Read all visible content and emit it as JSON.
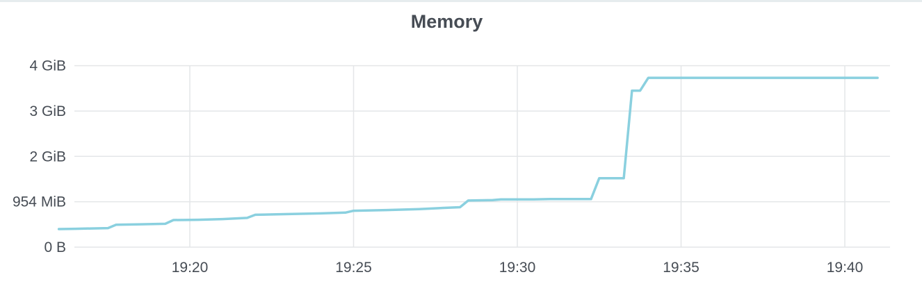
{
  "panel": {
    "title": "Memory"
  },
  "chart_data": {
    "type": "line",
    "title": "Memory",
    "xlabel": "",
    "ylabel": "",
    "x_range": [
      "19:16",
      "19:41"
    ],
    "ylim_mib": [
      0,
      4300
    ],
    "y_ticks": [
      {
        "label": "0 B",
        "value_mib": 0
      },
      {
        "label": "954 MiB",
        "value_mib": 954
      },
      {
        "label": "2 GiB",
        "value_mib": 1908
      },
      {
        "label": "3 GiB",
        "value_mib": 2861
      },
      {
        "label": "4 GiB",
        "value_mib": 3815
      }
    ],
    "x_ticks": [
      "19:20",
      "19:25",
      "19:30",
      "19:35",
      "19:40"
    ],
    "grid": true,
    "line_color": "#8ad0df",
    "series": [
      {
        "unit": "MiB",
        "points": [
          [
            "19:16:00",
            380
          ],
          [
            "19:16:30",
            385
          ],
          [
            "19:17:00",
            392
          ],
          [
            "19:17:30",
            400
          ],
          [
            "19:17:45",
            470
          ],
          [
            "19:18:30",
            480
          ],
          [
            "19:19:15",
            490
          ],
          [
            "19:19:30",
            570
          ],
          [
            "19:20:15",
            575
          ],
          [
            "19:21:00",
            590
          ],
          [
            "19:21:45",
            615
          ],
          [
            "19:22:00",
            680
          ],
          [
            "19:23:00",
            695
          ],
          [
            "19:24:00",
            710
          ],
          [
            "19:24:45",
            725
          ],
          [
            "19:25:00",
            765
          ],
          [
            "19:26:00",
            780
          ],
          [
            "19:27:00",
            800
          ],
          [
            "19:27:45",
            825
          ],
          [
            "19:28:15",
            840
          ],
          [
            "19:28:30",
            980
          ],
          [
            "19:29:15",
            990
          ],
          [
            "19:29:30",
            1005
          ],
          [
            "19:30:30",
            1005
          ],
          [
            "19:31:00",
            1010
          ],
          [
            "19:32:15",
            1010
          ],
          [
            "19:32:30",
            1450
          ],
          [
            "19:33:15",
            1450
          ],
          [
            "19:33:30",
            3290
          ],
          [
            "19:33:45",
            3290
          ],
          [
            "19:34:00",
            3560
          ],
          [
            "19:41:00",
            3560
          ]
        ]
      }
    ]
  }
}
